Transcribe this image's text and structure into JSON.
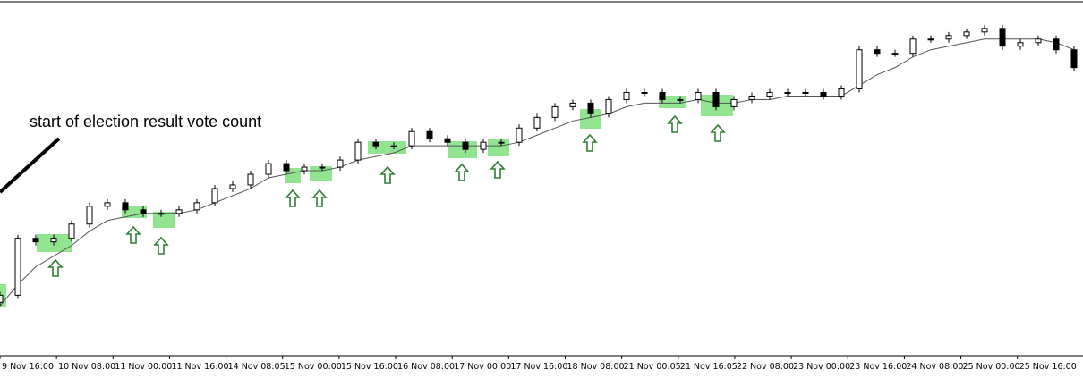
{
  "chart_data": {
    "type": "candlestick",
    "annotation": "start of election result vote count",
    "x_labels": [
      "9 Nov 16:00",
      "10 Nov 08:00",
      "11 Nov 00:00",
      "11 Nov 16:00",
      "14 Nov 08:05",
      "15 Nov 00:00",
      "15 Nov 16:00",
      "16 Nov 08:00",
      "17 Nov 00:00",
      "17 Nov 16:00",
      "18 Nov 08:00",
      "21 Nov 00:05",
      "21 Nov 16:05",
      "22 Nov 08:00",
      "23 Nov 00:00",
      "23 Nov 16:00",
      "24 Nov 08:00",
      "25 Nov 00:00",
      "25 Nov 16:00"
    ],
    "open": [
      15,
      17,
      33,
      32,
      33,
      37,
      42,
      43,
      41,
      40,
      40,
      41,
      43,
      47,
      48,
      51,
      54,
      52,
      53,
      53,
      55,
      60,
      59,
      59,
      63,
      61,
      60,
      58,
      60,
      60,
      64,
      67,
      70,
      71,
      68,
      72,
      74,
      74,
      72,
      72,
      74,
      70,
      72,
      73,
      74,
      74,
      74,
      73,
      75,
      86,
      85,
      85,
      89,
      89,
      90,
      91,
      92,
      87,
      88,
      89,
      86
    ],
    "high": [
      18,
      34,
      34,
      34,
      38,
      43,
      44,
      44,
      42,
      41,
      42,
      44,
      48,
      49,
      52,
      55,
      55,
      54,
      54,
      56,
      61,
      61,
      60,
      64,
      64,
      62,
      61,
      61,
      61,
      65,
      68,
      71,
      72,
      72,
      73,
      75,
      75,
      75,
      73,
      75,
      75,
      73,
      74,
      75,
      75,
      75,
      75,
      76,
      87,
      87,
      86,
      90,
      90,
      91,
      92,
      93,
      93,
      89,
      90,
      90,
      87
    ],
    "low": [
      14,
      16,
      31,
      31,
      32,
      36,
      41,
      40,
      39,
      39,
      39,
      40,
      42,
      46,
      47,
      50,
      51,
      51,
      52,
      52,
      54,
      58,
      58,
      58,
      60,
      59,
      57,
      57,
      59,
      59,
      63,
      66,
      69,
      67,
      67,
      71,
      73,
      71,
      71,
      71,
      69,
      69,
      71,
      72,
      73,
      73,
      72,
      72,
      74,
      84,
      84,
      84,
      88,
      88,
      89,
      90,
      86,
      86,
      87,
      85,
      80
    ],
    "close": [
      17,
      33,
      32,
      33,
      37,
      42,
      43,
      41,
      40,
      40,
      41,
      43,
      47,
      48,
      51,
      54,
      52,
      53,
      53,
      55,
      60,
      59,
      59,
      63,
      61,
      60,
      58,
      60,
      60,
      64,
      67,
      70,
      71,
      68,
      72,
      74,
      74,
      72,
      72,
      74,
      70,
      72,
      73,
      74,
      74,
      74,
      73,
      75,
      86,
      85,
      85,
      89,
      89,
      90,
      91,
      92,
      87,
      88,
      89,
      86,
      81
    ],
    "moving_average": {
      "color": "#555555",
      "values": [
        14,
        20,
        25,
        28,
        31,
        35,
        38,
        39,
        40,
        40,
        40,
        41,
        43,
        45,
        47,
        50,
        51,
        52,
        52,
        53,
        55,
        56,
        57,
        59,
        59,
        59,
        59,
        59,
        59,
        60,
        62,
        64,
        66,
        67,
        68,
        70,
        71,
        71,
        71,
        72,
        71,
        71,
        72,
        72,
        73,
        73,
        73,
        73,
        76,
        79,
        81,
        84,
        86,
        87,
        88,
        89,
        89,
        89,
        89,
        88,
        86
      ]
    },
    "ylim": [
      0,
      100
    ]
  }
}
